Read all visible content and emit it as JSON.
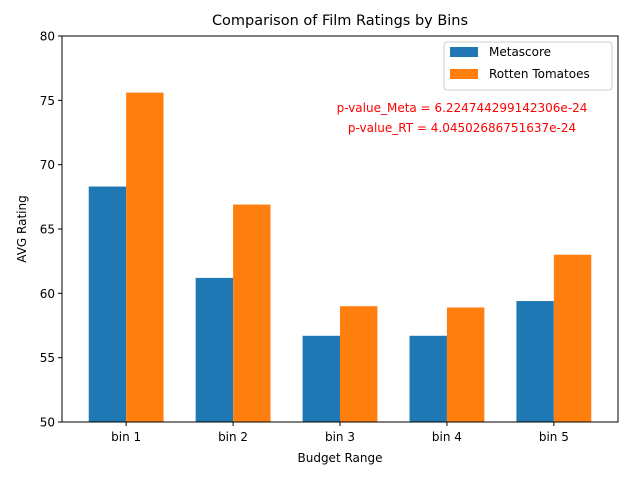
{
  "chart_data": {
    "type": "bar",
    "title": "Comparison of Film Ratings by Bins",
    "xlabel": "Budget Range",
    "ylabel": "AVG Rating",
    "ylim": [
      50,
      80
    ],
    "yticks": [
      50,
      55,
      60,
      65,
      70,
      75,
      80
    ],
    "categories": [
      "bin 1",
      "bin 2",
      "bin 3",
      "bin 4",
      "bin 5"
    ],
    "series": [
      {
        "name": "Metascore",
        "color": "#1f77b4",
        "values": [
          68.3,
          61.2,
          56.7,
          56.7,
          59.4
        ]
      },
      {
        "name": "Rotten Tomatoes",
        "color": "#ff7f0e",
        "values": [
          75.6,
          66.9,
          59.0,
          58.9,
          63.0
        ]
      }
    ],
    "annotations": [
      "p-value_Meta = 6.224744299142306e-24",
      "p-value_RT = 4.04502686751637e-24"
    ],
    "annotation_color": "#ff0000",
    "legend_position": "top-right",
    "grid": false
  }
}
